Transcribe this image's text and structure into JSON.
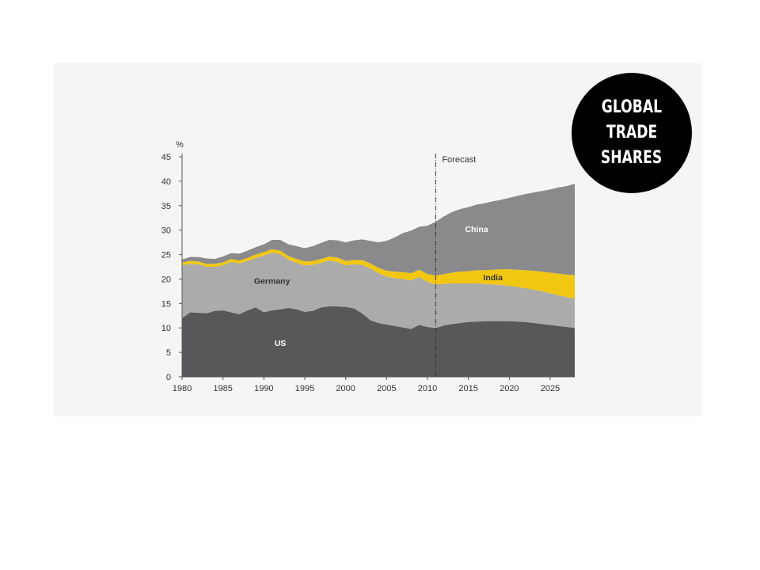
{
  "badge": {
    "line1": "GLOBAL",
    "line2": "TRADE",
    "line3": "SHARES"
  },
  "chart_data": {
    "type": "area",
    "stacked": true,
    "ylabel": "%",
    "ylim": [
      0,
      45
    ],
    "yticks": [
      0,
      5,
      10,
      15,
      20,
      25,
      30,
      35,
      40,
      45
    ],
    "xlim": [
      1980,
      2028
    ],
    "xticks": [
      1980,
      1985,
      1990,
      1995,
      2000,
      2005,
      2010,
      2015,
      2020,
      2025
    ],
    "forecast_start": 2011,
    "forecast_label": "Forecast",
    "grid": false,
    "legend": "none",
    "x": [
      1980,
      1981,
      1982,
      1983,
      1984,
      1985,
      1986,
      1987,
      1988,
      1989,
      1990,
      1991,
      1992,
      1993,
      1994,
      1995,
      1996,
      1997,
      1998,
      1999,
      2000,
      2001,
      2002,
      2003,
      2004,
      2005,
      2006,
      2007,
      2008,
      2009,
      2010,
      2011,
      2012,
      2013,
      2014,
      2015,
      2016,
      2017,
      2018,
      2019,
      2020,
      2021,
      2022,
      2023,
      2024,
      2025,
      2026,
      2027,
      2028
    ],
    "series": [
      {
        "name": "US",
        "color": "#58585a",
        "label_color": "#ffffff",
        "label_x": 1992,
        "label_y": 7,
        "values": [
          12,
          13.2,
          13.1,
          13,
          13.5,
          13.6,
          13.2,
          12.8,
          13.6,
          14.2,
          13.2,
          13.6,
          13.8,
          14.1,
          13.8,
          13.3,
          13.5,
          14.2,
          14.4,
          14.4,
          14.3,
          14,
          13,
          11.6,
          11,
          10.7,
          10.4,
          10.1,
          9.8,
          10.6,
          10.2,
          10,
          10.5,
          10.8,
          11,
          11.2,
          11.3,
          11.4,
          11.4,
          11.4,
          11.4,
          11.3,
          11.2,
          11,
          10.8,
          10.6,
          10.4,
          10.2,
          10
        ]
      },
      {
        "name": "Germany",
        "color": "#ababac",
        "label_color": "#333333",
        "label_x": 1991,
        "label_y": 19.7,
        "values": [
          10.8,
          9.9,
          9.9,
          9.5,
          9.0,
          9.2,
          10.3,
          10.4,
          10.1,
          10.1,
          11.6,
          11.8,
          11.3,
          9.9,
          9.5,
          9.5,
          9.4,
          9.1,
          9.4,
          9.1,
          8.5,
          9,
          9.9,
          10.6,
          10.2,
          9.8,
          9.8,
          9.9,
          9.9,
          9.8,
          9.2,
          8.9,
          8.5,
          8.3,
          8.1,
          7.9,
          7.8,
          7.6,
          7.5,
          7.4,
          7.2,
          7.1,
          6.9,
          6.8,
          6.7,
          6.5,
          6.3,
          6.1,
          6
        ]
      },
      {
        "name": "India",
        "color": "#f1c711",
        "label_color": "#333333",
        "label_x": 2018,
        "label_y": 20.4,
        "values": [
          0.6,
          0.6,
          0.6,
          0.6,
          0.6,
          0.6,
          0.6,
          0.6,
          0.6,
          0.7,
          0.7,
          0.7,
          0.7,
          0.7,
          0.8,
          0.8,
          0.8,
          0.8,
          0.8,
          0.9,
          0.9,
          0.9,
          1,
          1,
          1.1,
          1.2,
          1.3,
          1.4,
          1.5,
          1.5,
          1.6,
          1.8,
          2,
          2.2,
          2.4,
          2.5,
          2.7,
          2.8,
          3,
          3.2,
          3.4,
          3.5,
          3.7,
          3.9,
          4,
          4.2,
          4.4,
          4.6,
          4.8
        ]
      },
      {
        "name": "China",
        "color": "#8a8a8c",
        "label_color": "#ffffff",
        "label_x": 2016,
        "label_y": 30.3,
        "values": [
          0.6,
          0.8,
          0.9,
          1.1,
          1,
          1.2,
          1.2,
          1.4,
          1.5,
          1.5,
          1.6,
          1.9,
          2.2,
          2.4,
          2.6,
          2.7,
          3,
          3.3,
          3.4,
          3.5,
          3.8,
          4,
          4.2,
          4.6,
          5.2,
          6.1,
          7,
          8,
          8.7,
          8.8,
          9.9,
          11,
          11.8,
          12.4,
          12.8,
          13.1,
          13.4,
          13.7,
          14,
          14.2,
          14.6,
          15.1,
          15.6,
          16,
          16.5,
          17,
          17.6,
          18.1,
          18.7
        ]
      }
    ]
  }
}
